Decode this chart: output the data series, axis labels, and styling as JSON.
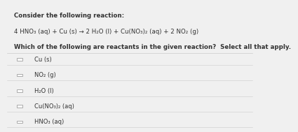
{
  "title_line1": "Consider the following reaction:",
  "reaction": "4 HNO₃ (aq) + Cu (s) → 2 H₂O (l) + Cu(NO₃)₂ (aq) + 2 NO₂ (g)",
  "question": "Which of the following are reactants in the given reaction?  Select all that apply.",
  "options": [
    "Cu (s)",
    "NO₂ (g)",
    "H₂O (l)",
    "Cu(NO₃)₂ (aq)",
    "HNO₃ (aq)"
  ],
  "bg_color": "#f0f0f0",
  "text_color": "#333333",
  "divider_color": "#cccccc",
  "title_fontsize": 6.2,
  "reaction_fontsize": 6.2,
  "question_fontsize": 6.2,
  "option_fontsize": 6.0,
  "checkbox_color": "#aaaaaa"
}
